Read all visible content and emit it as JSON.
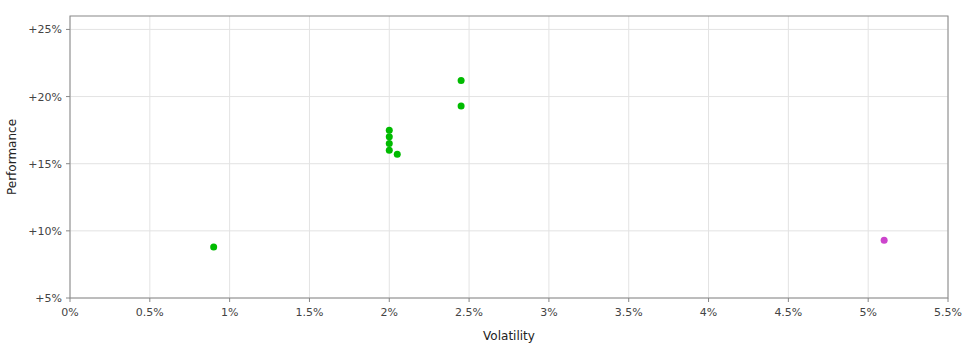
{
  "chart_data": {
    "type": "scatter",
    "xlabel": "Volatility",
    "ylabel": "Performance",
    "xlim": [
      0.0,
      0.055
    ],
    "ylim": [
      0.05,
      0.26
    ],
    "xticks": [
      {
        "value": 0.0,
        "label": "0%"
      },
      {
        "value": 0.005,
        "label": "0.5%"
      },
      {
        "value": 0.01,
        "label": "1%"
      },
      {
        "value": 0.015,
        "label": "1.5%"
      },
      {
        "value": 0.02,
        "label": "2%"
      },
      {
        "value": 0.025,
        "label": "2.5%"
      },
      {
        "value": 0.03,
        "label": "3%"
      },
      {
        "value": 0.035,
        "label": "3.5%"
      },
      {
        "value": 0.04,
        "label": "4%"
      },
      {
        "value": 0.045,
        "label": "4.5%"
      },
      {
        "value": 0.05,
        "label": "5%"
      },
      {
        "value": 0.055,
        "label": "5.5%"
      }
    ],
    "yticks": [
      {
        "value": 0.05,
        "label": "+5%"
      },
      {
        "value": 0.1,
        "label": "+10%"
      },
      {
        "value": 0.15,
        "label": "+15%"
      },
      {
        "value": 0.2,
        "label": "+20%"
      },
      {
        "value": 0.25,
        "label": "+25%"
      }
    ],
    "grid": true,
    "series": [
      {
        "color": "#00bb00",
        "x": [
          0.009,
          0.0245,
          0.0245,
          0.02,
          0.02,
          0.02,
          0.02,
          0.0205
        ],
        "values": [
          0.088,
          0.212,
          0.193,
          0.175,
          0.17,
          0.165,
          0.16,
          0.157
        ]
      },
      {
        "color": "#cc44cc",
        "x": [
          0.051
        ],
        "values": [
          0.093
        ]
      }
    ]
  }
}
